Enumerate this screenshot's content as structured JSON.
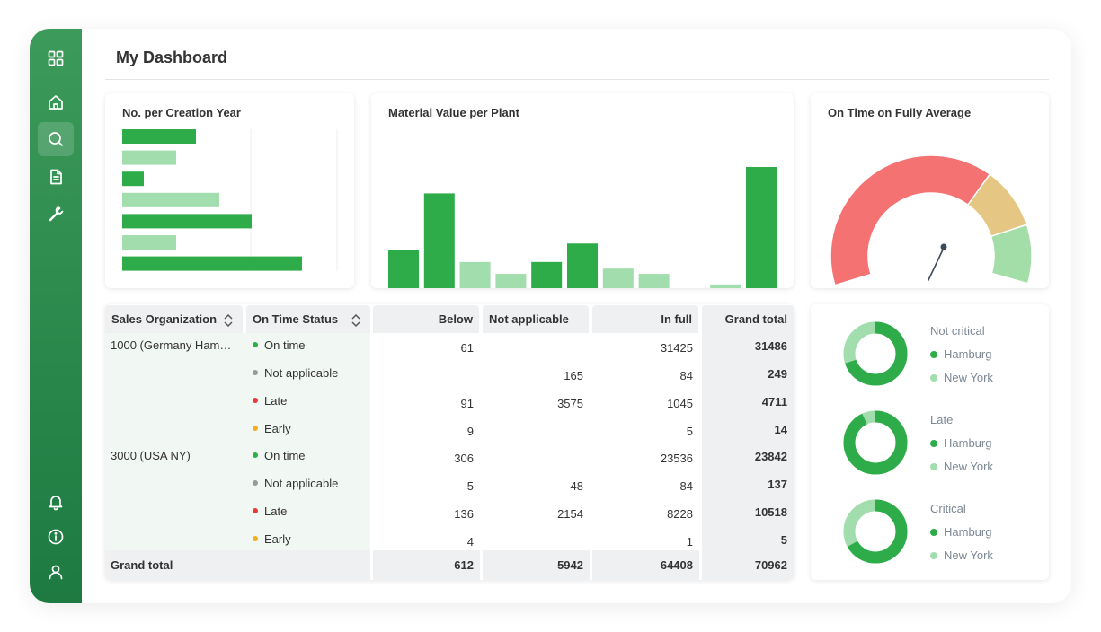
{
  "header": {
    "title": "My Dashboard"
  },
  "sidebar": {
    "items": [
      {
        "icon": "grid-icon",
        "active": false
      },
      {
        "icon": "home-icon",
        "active": false
      },
      {
        "icon": "search-icon",
        "active": true
      },
      {
        "icon": "document-icon",
        "active": false
      },
      {
        "icon": "wrench-icon",
        "active": false
      },
      {
        "icon": "bell-icon",
        "active": false
      },
      {
        "icon": "info-icon",
        "active": false
      },
      {
        "icon": "user-icon",
        "active": false
      }
    ]
  },
  "colors": {
    "dark_green": "#2fac4a",
    "light_green": "#a2ddad",
    "red": "#f57272",
    "amber": "#e5c682",
    "gauge_green": "#a3dda8",
    "on_time": "#2ab24a",
    "not_applicable": "#9a9a9a",
    "late": "#e83a3a",
    "early": "#f2b01e"
  },
  "cards": {
    "creation_year": {
      "title": "No. per Creation Year"
    },
    "material_value": {
      "title": "Material Value per Plant"
    },
    "on_time": {
      "title": "On Time on Fully Average"
    }
  },
  "chart_data": [
    {
      "type": "bar",
      "orientation": "horizontal",
      "title": "No. per Creation Year",
      "values": [
        41,
        30,
        12,
        54,
        72,
        30,
        100
      ],
      "shades": [
        "dark",
        "light",
        "dark",
        "light",
        "dark",
        "light",
        "dark"
      ],
      "ylim": [
        0,
        120
      ]
    },
    {
      "type": "bar",
      "title": "Material Value per Plant",
      "values": [
        37,
        80,
        28,
        19,
        28,
        42,
        23,
        19,
        6,
        11,
        100
      ],
      "shades": [
        "dark",
        "dark",
        "light",
        "light",
        "dark",
        "dark",
        "light",
        "light",
        "light",
        "light",
        "dark"
      ],
      "ylim": [
        0,
        100
      ]
    },
    {
      "type": "gauge",
      "title": "On Time on Fully Average",
      "segments": [
        {
          "color": "red",
          "fraction": 0.67
        },
        {
          "color": "amber",
          "fraction": 0.17
        },
        {
          "color": "green",
          "fraction": 0.16
        }
      ],
      "needle": 0.55
    }
  ],
  "table": {
    "headers": [
      "Sales Organization",
      "On Time Status",
      "Below",
      "Not applicable",
      "In full",
      "Grand total"
    ],
    "rows": [
      {
        "org": "1000 (Germany Ham…",
        "status": "On time",
        "color": "on_time",
        "below": "61",
        "na": "",
        "infull": "31425",
        "total": "31486"
      },
      {
        "org": "",
        "status": "Not applicable",
        "color": "not_applicable",
        "below": "",
        "na": "165",
        "infull": "84",
        "total": "249"
      },
      {
        "org": "",
        "status": "Late",
        "color": "late",
        "below": "91",
        "na": "3575",
        "infull": "1045",
        "total": "4711"
      },
      {
        "org": "",
        "status": "Early",
        "color": "early",
        "below": "9",
        "na": "",
        "infull": "5",
        "total": "14"
      },
      {
        "org": "3000 (USA NY)",
        "status": "On time",
        "color": "on_time",
        "below": "306",
        "na": "",
        "infull": "23536",
        "total": "23842"
      },
      {
        "org": "",
        "status": "Not applicable",
        "color": "not_applicable",
        "below": "5",
        "na": "48",
        "infull": "84",
        "total": "137"
      },
      {
        "org": "",
        "status": "Late",
        "color": "late",
        "below": "136",
        "na": "2154",
        "infull": "8228",
        "total": "10518"
      },
      {
        "org": "",
        "status": "Early",
        "color": "early",
        "below": "4",
        "na": "",
        "infull": "1",
        "total": "5"
      }
    ],
    "grand_total": {
      "label": "Grand total",
      "below": "612",
      "na": "5942",
      "infull": "64408",
      "total": "70962"
    }
  },
  "donuts": [
    {
      "title": "Not critical",
      "hamburg_fraction": 0.7,
      "legend": [
        "Hamburg",
        "New York"
      ]
    },
    {
      "title": "Late",
      "hamburg_fraction": 0.93,
      "legend": [
        "Hamburg",
        "New York"
      ]
    },
    {
      "title": "Critical",
      "hamburg_fraction": 0.67,
      "legend": [
        "Hamburg",
        "New York"
      ]
    }
  ]
}
